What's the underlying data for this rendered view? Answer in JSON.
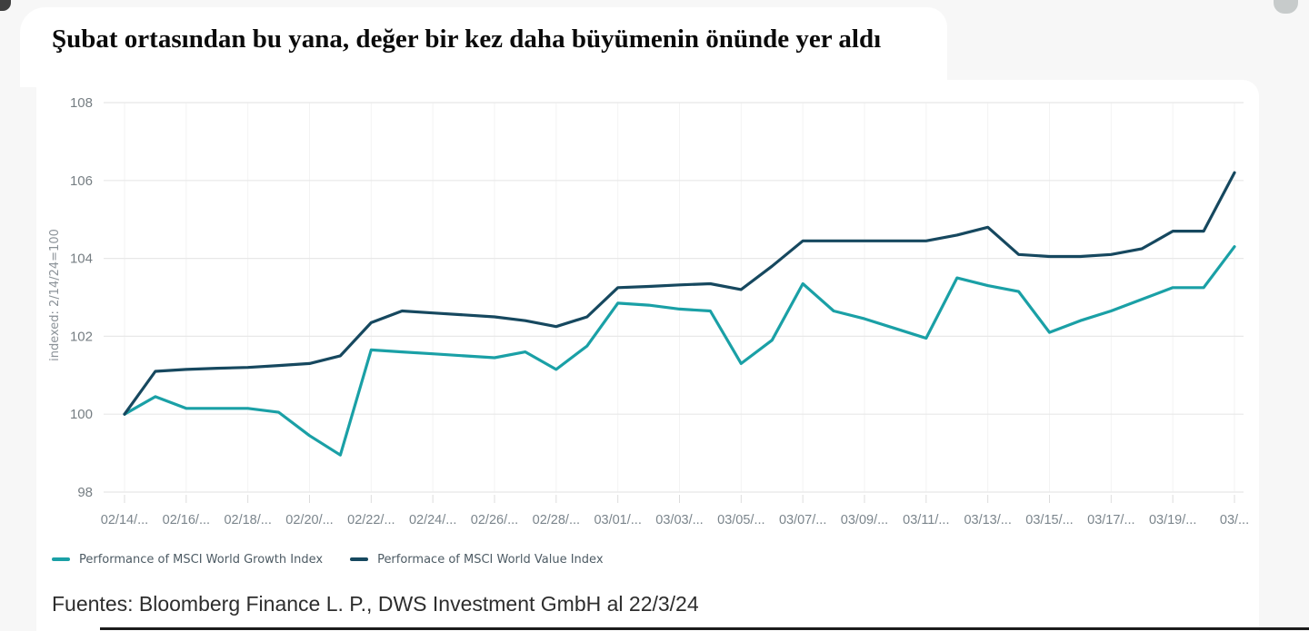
{
  "page": {
    "title": "Şubat ortasından bu yana, değer bir kez daha büyümenin önünde yer aldı",
    "source_note": "Fuentes: Bloomberg Finance L. P., DWS Investment GmbH al 22/3/24"
  },
  "chart_data": {
    "type": "line",
    "title": "Şubat ortasından bu yana, değer bir kez daha büyümenin önünde yer aldı",
    "xlabel": "",
    "ylabel": "indexed: 2/14/24=100",
    "ylim": [
      98,
      108
    ],
    "y_ticks": [
      98,
      100,
      102,
      104,
      106,
      108
    ],
    "grid": "horizontal",
    "legend_position": "bottom",
    "x": [
      "02/14",
      "02/15",
      "02/16",
      "02/17",
      "02/18",
      "02/19",
      "02/20",
      "02/21",
      "02/22",
      "02/23",
      "02/24",
      "02/25",
      "02/26",
      "02/27",
      "02/28",
      "02/29",
      "03/01",
      "03/02",
      "03/03",
      "03/04",
      "03/05",
      "03/06",
      "03/07",
      "03/08",
      "03/09",
      "03/10",
      "03/11",
      "03/12",
      "03/13",
      "03/14",
      "03/15",
      "03/16",
      "03/17",
      "03/18",
      "03/19",
      "03/20",
      "03/21"
    ],
    "x_tick_labels": [
      "02/14/...",
      "02/16/...",
      "02/18/...",
      "02/20/...",
      "02/22/...",
      "02/24/...",
      "02/26/...",
      "02/28/...",
      "03/01/...",
      "03/03/...",
      "03/05/...",
      "03/07/...",
      "03/09/...",
      "03/11/...",
      "03/13/...",
      "03/15/...",
      "03/17/...",
      "03/19/...",
      "03/..."
    ],
    "series": [
      {
        "name": "Performance of MSCI World Growth Index",
        "color": "#1aa0a6",
        "values": [
          100,
          100.45,
          100.15,
          100.15,
          100.15,
          100.05,
          99.45,
          98.95,
          101.65,
          101.6,
          101.55,
          101.5,
          101.45,
          101.6,
          101.15,
          101.75,
          102.85,
          102.8,
          102.7,
          102.65,
          101.3,
          101.9,
          103.35,
          102.65,
          102.45,
          102.2,
          101.95,
          103.5,
          103.3,
          103.15,
          102.1,
          102.4,
          102.65,
          102.95,
          103.25,
          103.25,
          104.3
        ]
      },
      {
        "name": "Performace of MSCI World Value Index",
        "color": "#16485f",
        "values": [
          100,
          101.1,
          101.15,
          101.18,
          101.2,
          101.25,
          101.3,
          101.5,
          102.35,
          102.65,
          102.6,
          102.55,
          102.5,
          102.4,
          102.25,
          102.5,
          103.25,
          103.28,
          103.32,
          103.35,
          103.2,
          103.8,
          104.45,
          104.45,
          104.45,
          104.45,
          104.45,
          104.6,
          104.8,
          104.1,
          104.05,
          104.05,
          104.1,
          104.25,
          104.7,
          104.7,
          106.2
        ]
      }
    ]
  }
}
